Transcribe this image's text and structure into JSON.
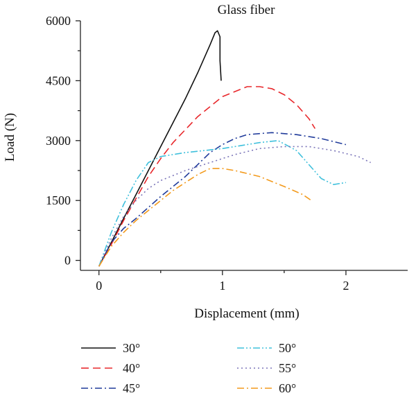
{
  "chart_data": {
    "type": "line",
    "title": "Glass fiber",
    "xlabel": "Displacement (mm)",
    "ylabel": "Load (N)",
    "xlim": [
      -0.15,
      2.5
    ],
    "ylim": [
      -250,
      6000
    ],
    "xticks": [
      0,
      1,
      2
    ],
    "yticks": [
      0,
      1500,
      3000,
      4500,
      6000
    ],
    "grid": false,
    "legend_position": "bottom",
    "series": [
      {
        "name": "30°",
        "color": "#111111",
        "dash": "solid",
        "x": [
          0,
          0.1,
          0.2,
          0.3,
          0.4,
          0.5,
          0.6,
          0.7,
          0.8,
          0.9,
          0.94,
          0.96,
          0.98,
          0.98,
          0.99
        ],
        "y": [
          -150,
          450,
          1050,
          1650,
          2250,
          2850,
          3450,
          4050,
          4700,
          5400,
          5700,
          5750,
          5600,
          5000,
          4500
        ]
      },
      {
        "name": "40°",
        "color": "#e8282c",
        "dash": "dashed",
        "x": [
          0,
          0.1,
          0.2,
          0.3,
          0.4,
          0.5,
          0.6,
          0.8,
          1.0,
          1.2,
          1.3,
          1.4,
          1.5,
          1.6,
          1.7,
          1.75
        ],
        "y": [
          -150,
          400,
          1000,
          1550,
          2100,
          2550,
          2950,
          3600,
          4100,
          4350,
          4350,
          4300,
          4150,
          3900,
          3550,
          3300
        ]
      },
      {
        "name": "45°",
        "color": "#1f3a9a",
        "dash": "dashdot",
        "x": [
          0,
          0.1,
          0.2,
          0.3,
          0.5,
          0.7,
          0.8,
          0.9,
          1.0,
          1.1,
          1.2,
          1.4,
          1.6,
          1.8,
          2.0
        ],
        "y": [
          -150,
          450,
          800,
          1050,
          1600,
          2100,
          2400,
          2700,
          2900,
          3050,
          3150,
          3200,
          3150,
          3050,
          2900
        ]
      },
      {
        "name": "50°",
        "color": "#3fc0dc",
        "dash": "dashdotdot",
        "x": [
          0,
          0.1,
          0.2,
          0.3,
          0.4,
          0.5,
          0.7,
          1.0,
          1.3,
          1.45,
          1.6,
          1.7,
          1.8,
          1.9,
          2.0
        ],
        "y": [
          -150,
          700,
          1400,
          2000,
          2450,
          2600,
          2700,
          2800,
          2950,
          3000,
          2750,
          2400,
          2050,
          1900,
          1950
        ]
      },
      {
        "name": "55°",
        "color": "#7a74b8",
        "dash": "dotted",
        "x": [
          0,
          0.1,
          0.2,
          0.3,
          0.4,
          0.5,
          0.7,
          0.9,
          1.1,
          1.3,
          1.5,
          1.7,
          1.9,
          2.1,
          2.2
        ],
        "y": [
          -150,
          550,
          1100,
          1500,
          1800,
          2000,
          2250,
          2450,
          2650,
          2800,
          2850,
          2850,
          2750,
          2600,
          2450
        ]
      },
      {
        "name": "60°",
        "color": "#f39a1c",
        "dash": "dashdot",
        "x": [
          0,
          0.1,
          0.2,
          0.3,
          0.4,
          0.5,
          0.6,
          0.7,
          0.8,
          0.9,
          1.0,
          1.1,
          1.3,
          1.5,
          1.65,
          1.72
        ],
        "y": [
          -150,
          350,
          700,
          1000,
          1250,
          1500,
          1750,
          1950,
          2150,
          2300,
          2300,
          2250,
          2100,
          1850,
          1650,
          1500
        ]
      }
    ]
  }
}
